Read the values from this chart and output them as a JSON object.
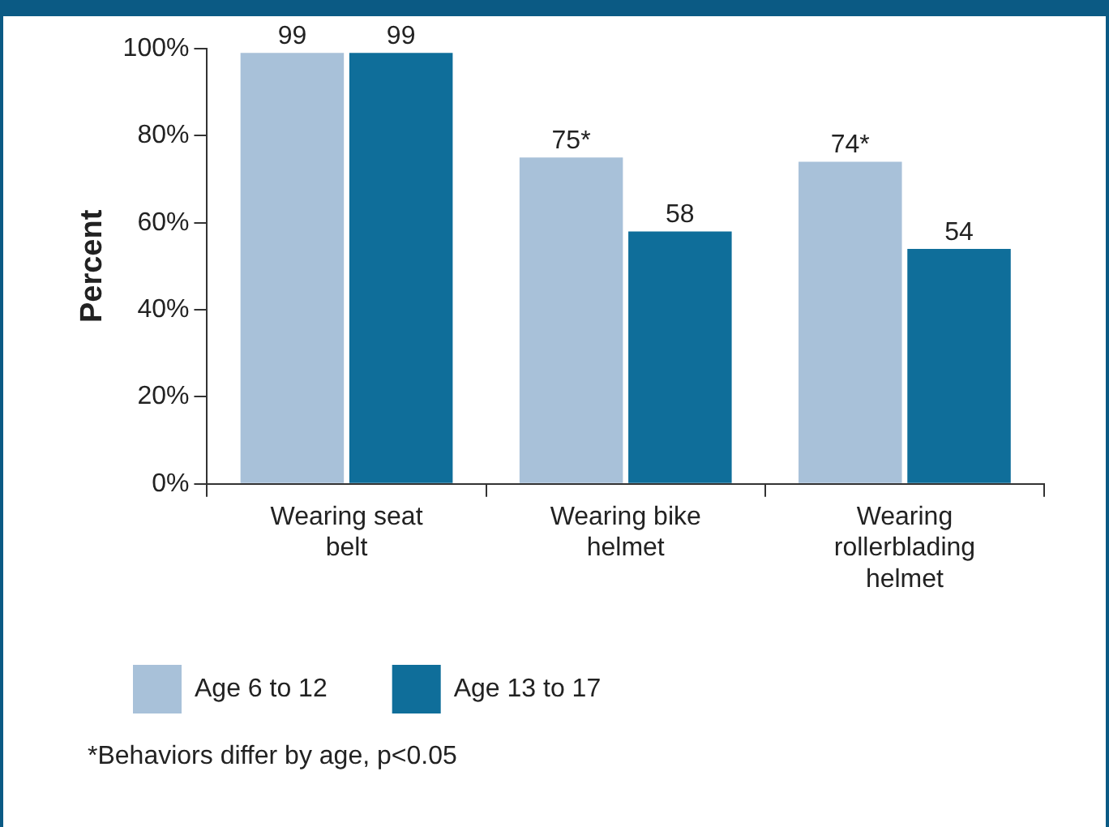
{
  "chart_data": {
    "type": "bar",
    "ylabel": "Percent",
    "categories": [
      "Wearing seat belt",
      "Wearing bike helmet",
      "Wearing rollerblading helmet"
    ],
    "series": [
      {
        "name": "Age 6 to 12",
        "color": "#a8c1d9",
        "values": [
          99,
          75,
          74
        ],
        "value_labels": [
          "99",
          "75*",
          "74*"
        ]
      },
      {
        "name": "Age 13 to 17",
        "color": "#0f6e9a",
        "values": [
          99,
          58,
          54
        ],
        "value_labels": [
          "99",
          "58",
          "54"
        ]
      }
    ],
    "ylim": [
      0,
      100
    ],
    "yticks": [
      {
        "value": 0,
        "label": "0%"
      },
      {
        "value": 20,
        "label": "20%"
      },
      {
        "value": 40,
        "label": "40%"
      },
      {
        "value": 60,
        "label": "60%"
      },
      {
        "value": 80,
        "label": "80%"
      },
      {
        "value": 100,
        "label": "100%"
      }
    ],
    "grid": false,
    "legend": "bottom left",
    "annotations": [
      "*Behaviors differ by age, p<0.05"
    ]
  }
}
